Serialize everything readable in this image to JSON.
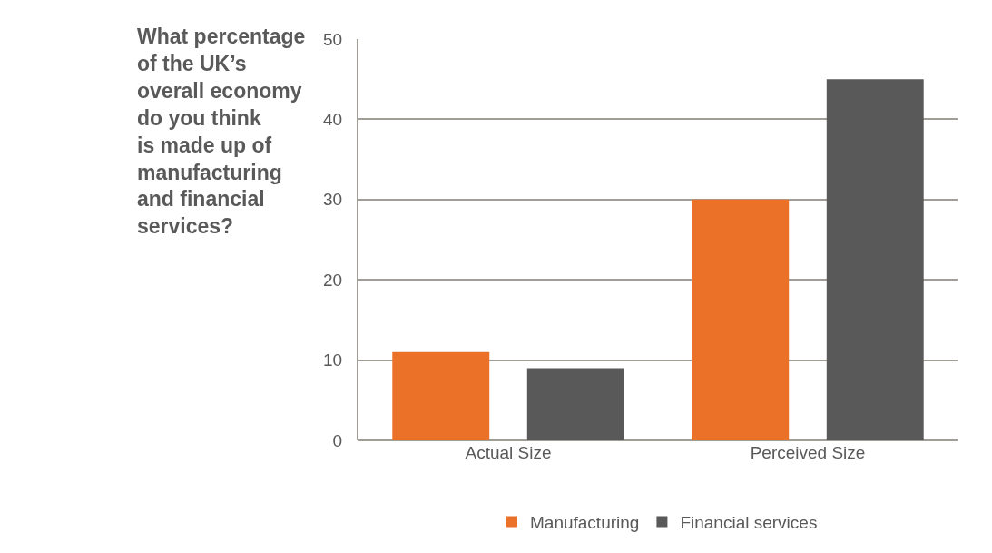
{
  "chart_data": {
    "type": "bar",
    "title": "What percentage\nof the UK’s\noverall economy\ndo you think\nis made up of\nmanufacturing\nand financial\nservices?",
    "categories": [
      "Actual Size",
      "Perceived Size"
    ],
    "series": [
      {
        "name": "Manufacturing",
        "color": "#eb7128",
        "values": [
          11,
          30
        ]
      },
      {
        "name": "Financial services",
        "color": "#595959",
        "values": [
          9,
          45
        ]
      }
    ],
    "ylim": [
      0,
      50
    ],
    "yticks": [
      0,
      10,
      20,
      30,
      40,
      50
    ],
    "grid": "y",
    "legend": "bottom"
  }
}
